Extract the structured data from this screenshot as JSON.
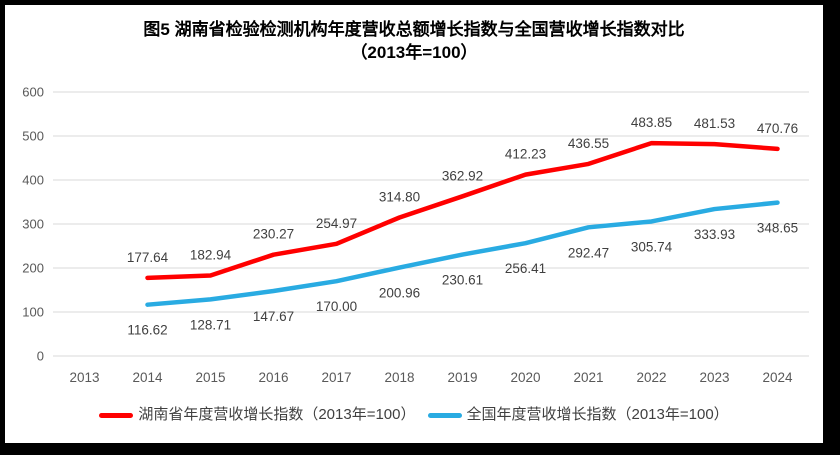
{
  "frame": {
    "border_color": "#000000",
    "background": "#ffffff"
  },
  "title": {
    "line1": "图5 湖南省检验检测机构年度营收总额增长指数与全国营收增长指数对比",
    "line2": "（2013年=100）"
  },
  "chart_data": {
    "type": "line",
    "title": "图5 湖南省检验检测机构年度营收总额增长指数与全国营收增长指数对比（2013年=100）",
    "categories": [
      "2013",
      "2014",
      "2015",
      "2016",
      "2017",
      "2018",
      "2019",
      "2020",
      "2021",
      "2022",
      "2023",
      "2024"
    ],
    "series": [
      {
        "name": "湖南省年度营收增长指数（2013年=100）",
        "color": "#FF0000",
        "label_position": "above",
        "values": [
          null,
          177.64,
          182.94,
          230.27,
          254.97,
          314.8,
          362.92,
          412.23,
          436.55,
          483.85,
          481.53,
          470.76
        ],
        "labels": [
          "",
          "177.64",
          "182.94",
          "230.27",
          "254.97",
          "314.80",
          "362.92",
          "412.23",
          "436.55",
          "483.85",
          "481.53",
          "470.76"
        ]
      },
      {
        "name": "全国年度营收增长指数（2013年=100）",
        "color": "#29ABE2",
        "label_position": "below",
        "values": [
          null,
          116.62,
          128.71,
          147.67,
          170.0,
          200.96,
          230.61,
          256.41,
          292.47,
          305.74,
          333.93,
          348.65
        ],
        "labels": [
          "",
          "116.62",
          "128.71",
          "147.67",
          "170.00",
          "200.96",
          "230.61",
          "256.41",
          "292.47",
          "305.74",
          "333.93",
          "348.65"
        ]
      }
    ],
    "ylim": [
      0,
      600
    ],
    "ytick_interval": 100,
    "yticks": [
      "0",
      "100",
      "200",
      "300",
      "400",
      "500",
      "600"
    ],
    "grid": true,
    "gridline_color": "#D9D9D9",
    "axis_label_color": "#595959",
    "data_label_color": "#404040",
    "legend_position": "bottom"
  }
}
